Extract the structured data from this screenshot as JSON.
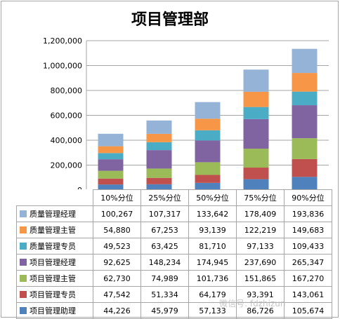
{
  "chart_data": {
    "type": "bar",
    "stacked": true,
    "title": "项目管理部",
    "categories": [
      "10%分位",
      "25%分位",
      "50%分位",
      "75%分位",
      "90%分位"
    ],
    "ylim": [
      0,
      1200000
    ],
    "yticks": [
      "0",
      "200,000",
      "400,000",
      "600,000",
      "800,000",
      "1,000,000",
      "1,200,000"
    ],
    "grid": true,
    "legend": "data-table",
    "series": [
      {
        "name": "项目管理助理",
        "color": "#4f81bd",
        "values": [
          44226,
          45979,
          57133,
          86726,
          105674
        ],
        "labels": [
          "44,226",
          "45,979",
          "57,133",
          "86,726",
          "105,674"
        ]
      },
      {
        "name": "项目管理专员",
        "color": "#c0504d",
        "values": [
          47542,
          51334,
          64179,
          93391,
          143061
        ],
        "labels": [
          "47,542",
          "51,334",
          "64,179",
          "93,391",
          "143,061"
        ]
      },
      {
        "name": "项目管理主管",
        "color": "#9bbb59",
        "values": [
          62730,
          74989,
          101736,
          151865,
          167270
        ],
        "labels": [
          "62,730",
          "74,989",
          "101,736",
          "151,865",
          "167,270"
        ]
      },
      {
        "name": "项目管理经理",
        "color": "#8064a2",
        "values": [
          92625,
          148234,
          174945,
          237690,
          265347
        ],
        "labels": [
          "92,625",
          "148,234",
          "174,945",
          "237,690",
          "265,347"
        ]
      },
      {
        "name": "质量管理专员",
        "color": "#4bacc6",
        "values": [
          49523,
          63425,
          81710,
          97133,
          109433
        ],
        "labels": [
          "49,523",
          "63,425",
          "81,710",
          "97,133",
          "109,433"
        ]
      },
      {
        "name": "质量管理主管",
        "color": "#f79646",
        "values": [
          54880,
          67253,
          93139,
          122219,
          149683
        ],
        "labels": [
          "54,880",
          "67,253",
          "93,139",
          "122,219",
          "149,683"
        ]
      },
      {
        "name": "质量管理经理",
        "color": "#95b3d7",
        "values": [
          100267,
          107317,
          133642,
          178409,
          193836
        ],
        "labels": [
          "100,267",
          "107,317",
          "133,642",
          "178,409",
          "193,836"
        ]
      }
    ]
  },
  "watermark": "微信号: fdzhizun"
}
